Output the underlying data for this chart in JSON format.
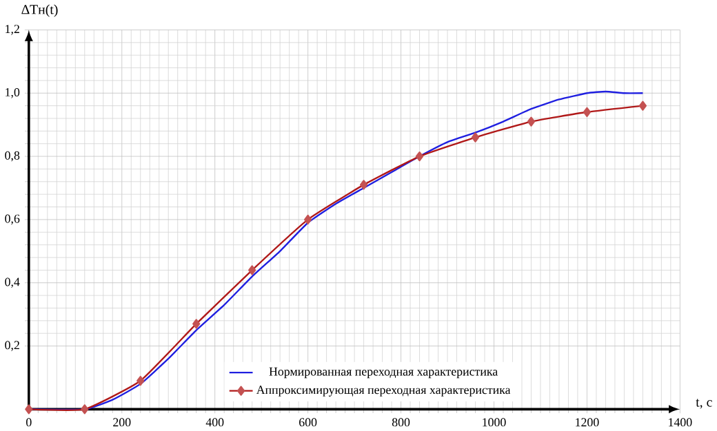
{
  "chart_data": {
    "type": "line",
    "xlabel": "t, c",
    "ylabel": "∆Tн(t)",
    "xlim": [
      0,
      1400
    ],
    "ylim": [
      0,
      1.2
    ],
    "xticks": [
      0,
      200,
      400,
      600,
      800,
      1000,
      1200,
      1400
    ],
    "yticks": [
      {
        "value": 0.2,
        "label": "0,2"
      },
      {
        "value": 0.4,
        "label": "0,4"
      },
      {
        "value": 0.6,
        "label": "0,6"
      },
      {
        "value": 0.8,
        "label": "0,8"
      },
      {
        "value": 1.0,
        "label": "1,0"
      },
      {
        "value": 1.2,
        "label": "1,2"
      }
    ],
    "grid": true,
    "legend": "bottom",
    "series": [
      {
        "name": "Нормированная переходная характеристика",
        "color": "#1f1fe0",
        "marker": "none",
        "x": [
          0,
          120,
          180,
          240,
          300,
          360,
          420,
          480,
          540,
          600,
          660,
          720,
          780,
          840,
          900,
          960,
          1020,
          1080,
          1140,
          1200,
          1240,
          1280,
          1320
        ],
        "values": [
          0,
          0,
          0.03,
          0.08,
          0.16,
          0.25,
          0.33,
          0.42,
          0.5,
          0.59,
          0.65,
          0.7,
          0.75,
          0.8,
          0.845,
          0.875,
          0.91,
          0.95,
          0.98,
          1.0,
          1.005,
          1.0,
          1.0
        ]
      },
      {
        "name": "Аппроксимирующая переходная характеристика",
        "color": "#b01818",
        "marker": "diamond",
        "x": [
          0,
          120,
          240,
          360,
          480,
          600,
          720,
          840,
          960,
          1080,
          1200,
          1320
        ],
        "values": [
          0,
          0,
          0.09,
          0.27,
          0.44,
          0.6,
          0.71,
          0.8,
          0.86,
          0.91,
          0.94,
          0.96
        ]
      }
    ]
  }
}
